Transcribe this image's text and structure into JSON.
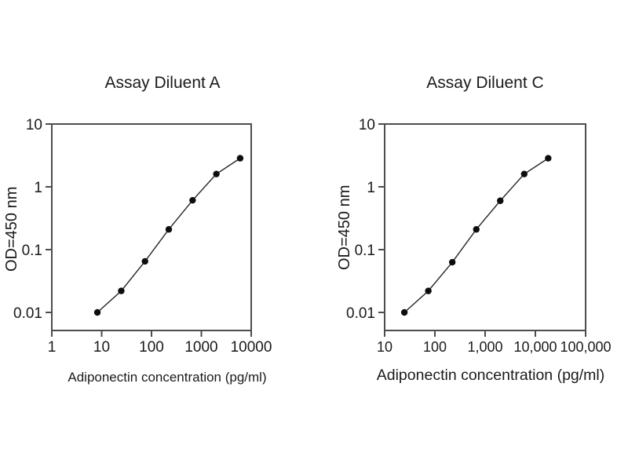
{
  "page": {
    "background": "#ffffff"
  },
  "chart_data": [
    {
      "type": "line",
      "title": "Assay Diluent A",
      "xlabel": "Adiponectin concentration (pg/ml)",
      "ylabel": "OD=450 nm",
      "xscale": "log",
      "yscale": "log",
      "xlim": [
        1,
        10000
      ],
      "ylim": [
        0.01,
        10
      ],
      "grid": false,
      "legend": "none",
      "x_ticks": [
        {
          "label": "1",
          "value": 1
        },
        {
          "label": "10",
          "value": 10
        },
        {
          "label": "100",
          "value": 100
        },
        {
          "label": "1000",
          "value": 1000
        },
        {
          "label": "10000",
          "value": 10000
        }
      ],
      "y_ticks": [
        {
          "label": "10",
          "value": 10
        },
        {
          "label": "1",
          "value": 1
        },
        {
          "label": "0.1",
          "value": 0.1
        },
        {
          "label": "0.01",
          "value": 0.01
        }
      ],
      "x": [
        8.2,
        24.7,
        74,
        222,
        667,
        2000,
        6000
      ],
      "y": [
        0.01,
        0.022,
        0.065,
        0.21,
        0.61,
        1.6,
        2.85
      ],
      "marker": "filled-circle",
      "line_color": "#262626",
      "marker_color": "#0d0d0d",
      "axis_color": "#4d4d4d"
    },
    {
      "type": "line",
      "title": "Assay Diluent C",
      "xlabel": "Adiponectin concentration (pg/ml)",
      "ylabel": "OD=450 nm",
      "xscale": "log",
      "yscale": "log",
      "xlim": [
        10,
        100000
      ],
      "ylim": [
        0.01,
        10
      ],
      "grid": false,
      "legend": "none",
      "x_ticks": [
        {
          "label": "10",
          "value": 10
        },
        {
          "label": "100",
          "value": 100
        },
        {
          "label": "1,000",
          "value": 1000
        },
        {
          "label": "10,000",
          "value": 10000
        },
        {
          "label": "100,000",
          "value": 100000
        }
      ],
      "y_ticks": [
        {
          "label": "10",
          "value": 10
        },
        {
          "label": "1",
          "value": 1
        },
        {
          "label": "0.1",
          "value": 0.1
        },
        {
          "label": "0.01",
          "value": 0.01
        }
      ],
      "x": [
        24.7,
        74,
        222,
        667,
        2000,
        6000,
        18000
      ],
      "y": [
        0.01,
        0.022,
        0.063,
        0.21,
        0.6,
        1.6,
        2.85
      ],
      "marker": "filled-circle",
      "line_color": "#262626",
      "marker_color": "#0d0d0d",
      "axis_color": "#4d4d4d"
    }
  ]
}
